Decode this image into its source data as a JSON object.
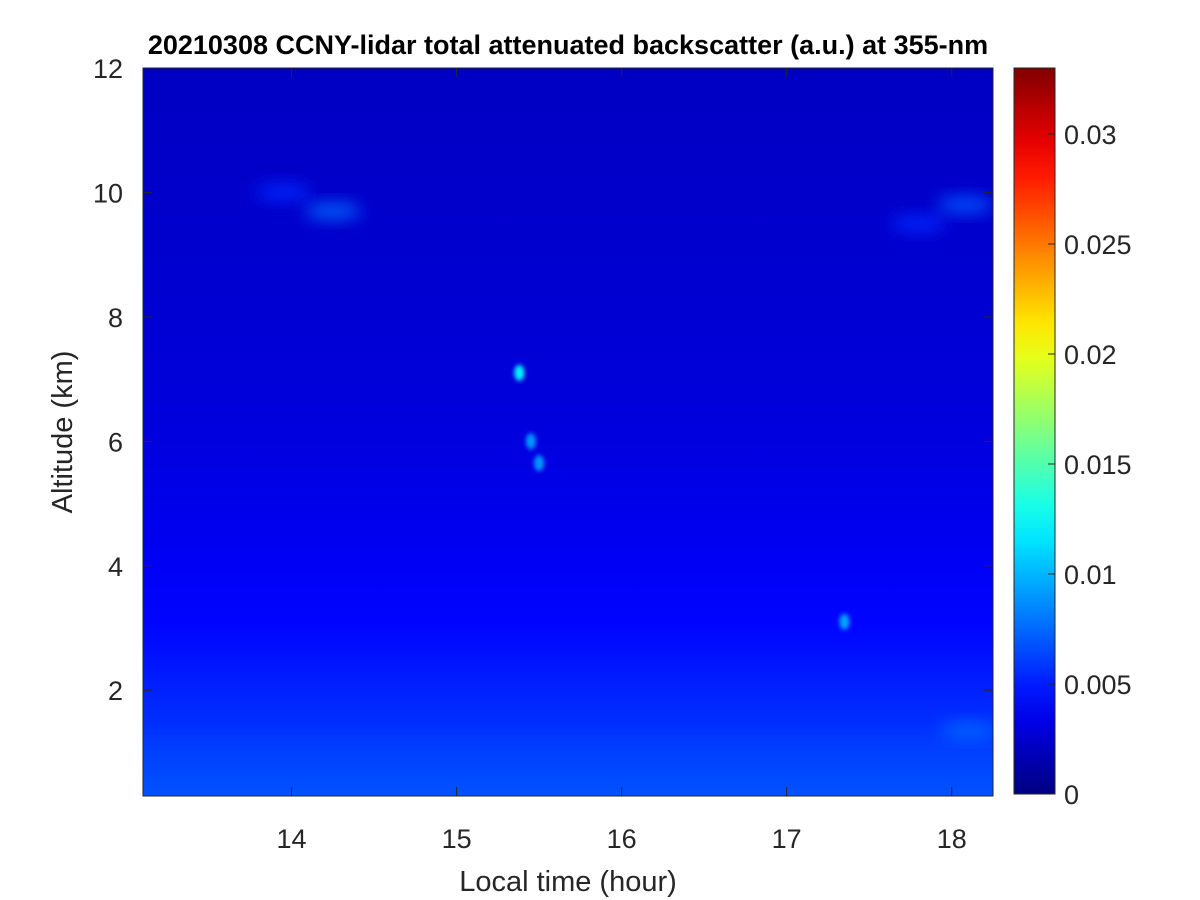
{
  "chart_data": {
    "type": "heatmap",
    "title": "20210308 CCNY-lidar total attenuated backscatter (a.u.) at 355-nm",
    "xlabel": "Local time (hour)",
    "ylabel": "Altitude (km)",
    "xlim": [
      13.1,
      18.25
    ],
    "ylim": [
      0.3,
      12
    ],
    "xticks": [
      14,
      15,
      16,
      17,
      18
    ],
    "xtick_labels": [
      "14",
      "15",
      "16",
      "17",
      "18"
    ],
    "yticks": [
      2,
      4,
      6,
      8,
      10,
      12
    ],
    "ytick_labels": [
      "2",
      "4",
      "6",
      "8",
      "10",
      "12"
    ],
    "colormap": "jet",
    "colorbar": {
      "range": [
        0,
        0.033
      ],
      "ticks": [
        0,
        0.005,
        0.01,
        0.015,
        0.02,
        0.025,
        0.03
      ],
      "tick_labels": [
        "0",
        "0.005",
        "0.01",
        "0.015",
        "0.02",
        "0.025",
        "0.03"
      ]
    },
    "background_value": 0.0022,
    "profile": [
      {
        "altitude": 0.3,
        "value": 0.0068
      },
      {
        "altitude": 0.5,
        "value": 0.0066
      },
      {
        "altitude": 1.0,
        "value": 0.0062
      },
      {
        "altitude": 1.5,
        "value": 0.0056
      },
      {
        "altitude": 2.0,
        "value": 0.0052
      },
      {
        "altitude": 2.5,
        "value": 0.0047
      },
      {
        "altitude": 3.0,
        "value": 0.0043
      },
      {
        "altitude": 4.0,
        "value": 0.0038
      },
      {
        "altitude": 5.0,
        "value": 0.0034
      },
      {
        "altitude": 6.0,
        "value": 0.0031
      },
      {
        "altitude": 8.0,
        "value": 0.0027
      },
      {
        "altitude": 10.0,
        "value": 0.0024
      },
      {
        "altitude": 12.0,
        "value": 0.0022
      }
    ],
    "features": [
      {
        "time": 15.38,
        "altitude": 7.1,
        "value": 0.012
      },
      {
        "time": 15.45,
        "altitude": 6.0,
        "value": 0.009
      },
      {
        "time": 15.5,
        "altitude": 5.65,
        "value": 0.009
      },
      {
        "time": 13.95,
        "altitude": 10.0,
        "value": 0.0055
      },
      {
        "time": 14.25,
        "altitude": 9.7,
        "value": 0.0075
      },
      {
        "time": 17.8,
        "altitude": 9.5,
        "value": 0.0055
      },
      {
        "time": 18.08,
        "altitude": 9.8,
        "value": 0.007
      },
      {
        "time": 17.35,
        "altitude": 3.1,
        "value": 0.0095
      },
      {
        "time": 18.1,
        "altitude": 1.35,
        "value": 0.0075
      }
    ]
  }
}
